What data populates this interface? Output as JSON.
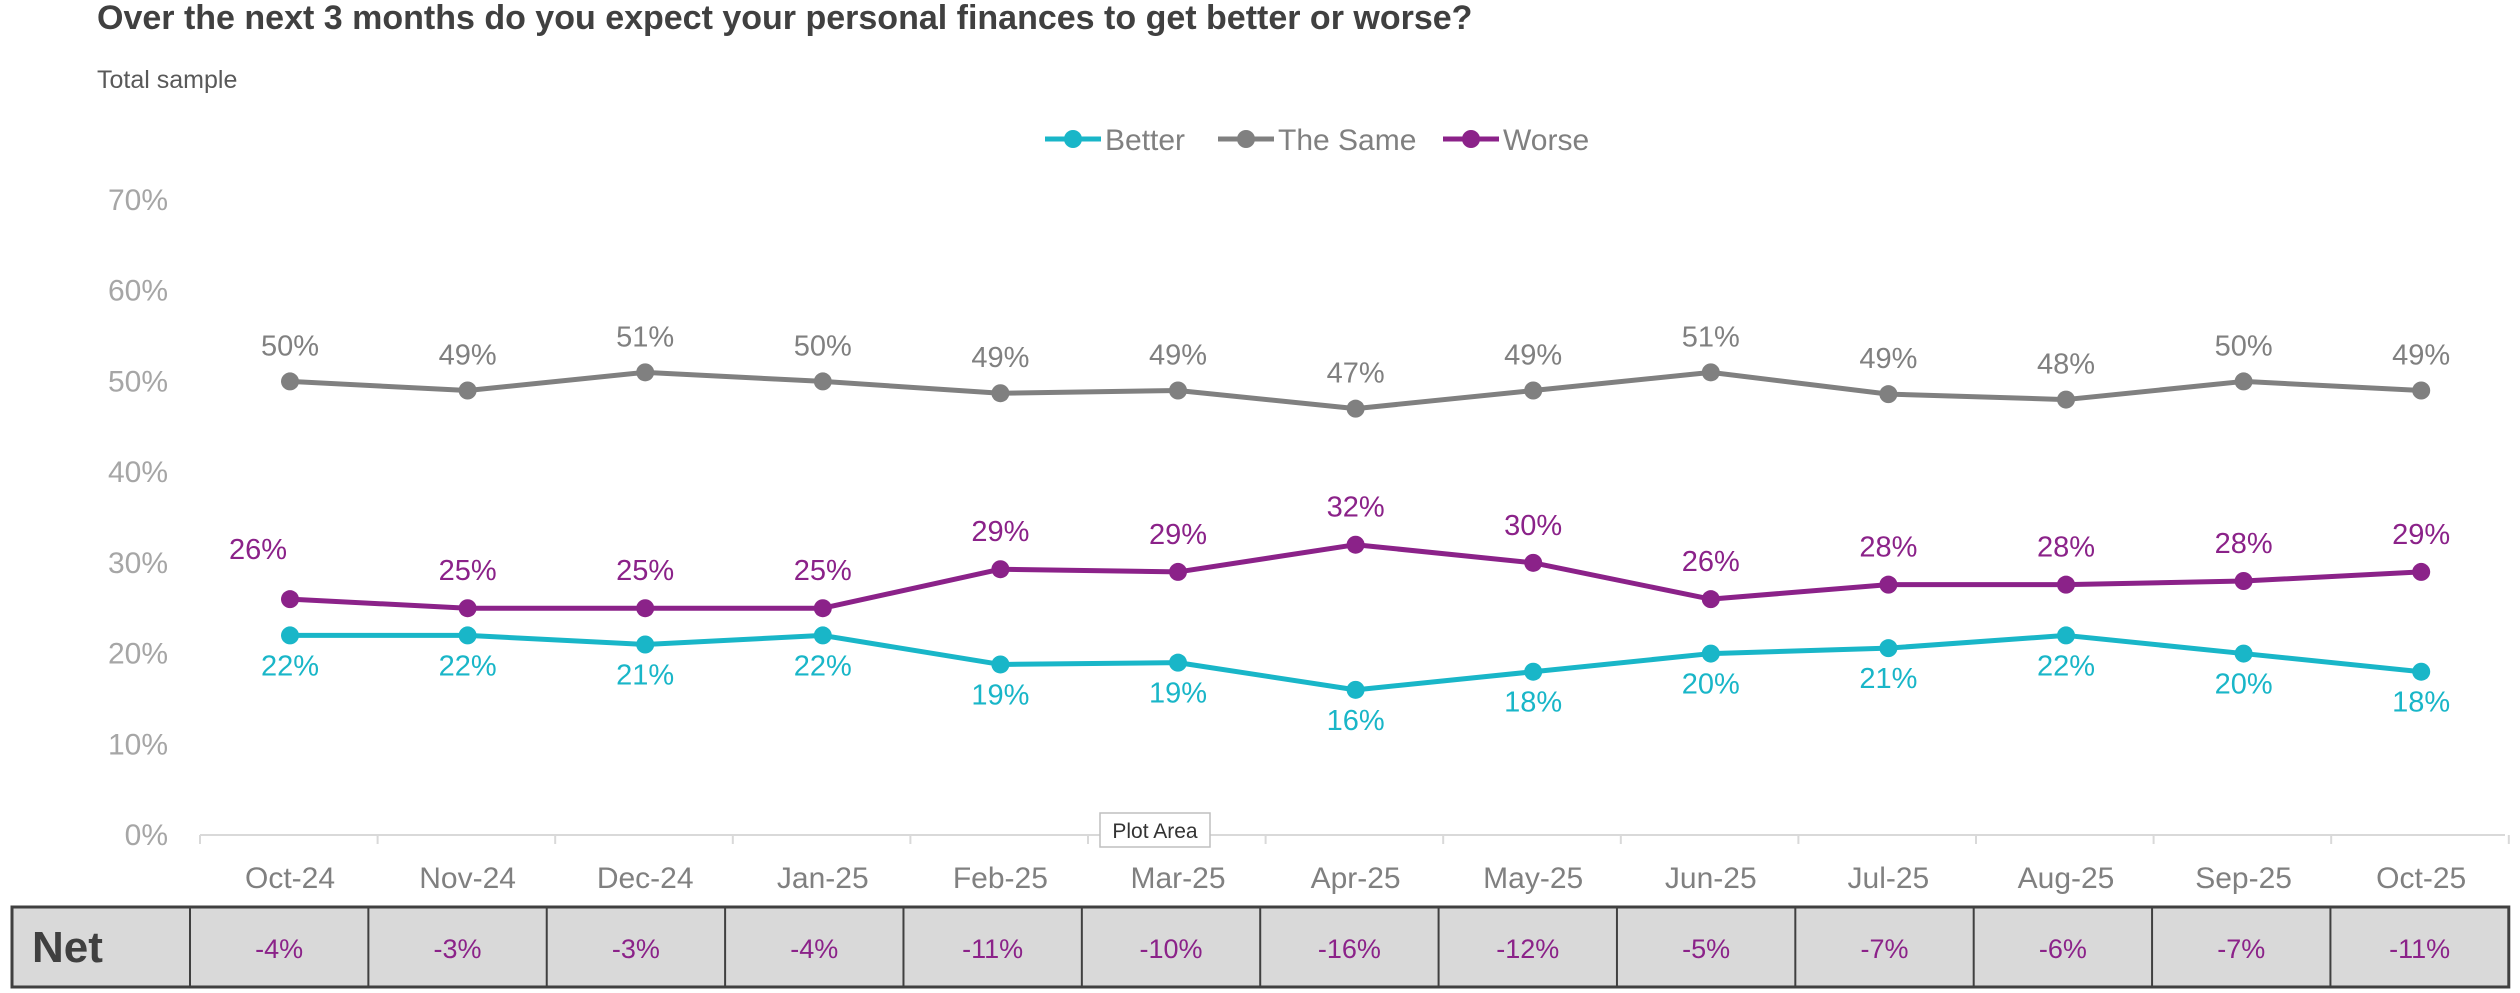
{
  "chart_data": {
    "type": "line",
    "title": "Over the next 3 months do you expect your personal finances to get better or worse?",
    "subtitle": "Total sample",
    "categories": [
      "Oct-24",
      "Nov-24",
      "Dec-24",
      "Jan-25",
      "Feb-25",
      "Mar-25",
      "Apr-25",
      "May-25",
      "Jun-25",
      "Jul-25",
      "Aug-25",
      "Sep-25",
      "Oct-25"
    ],
    "series": [
      {
        "name": "Better",
        "color": "#19b6c8",
        "values": [
          22,
          22,
          21,
          22,
          18.8,
          19,
          16,
          18,
          20,
          20.6,
          22,
          20,
          18
        ],
        "labels": [
          "22%",
          "22%",
          "21%",
          "22%",
          "19%",
          "19%",
          "16%",
          "18%",
          "20%",
          "21%",
          "22%",
          "20%",
          "18%"
        ]
      },
      {
        "name": "The Same",
        "color": "#808080",
        "values": [
          50,
          49,
          51,
          50,
          48.7,
          49,
          47,
          49,
          51,
          48.6,
          48,
          50,
          49
        ],
        "labels": [
          "50%",
          "49%",
          "51%",
          "50%",
          "49%",
          "49%",
          "47%",
          "49%",
          "51%",
          "49%",
          "48%",
          "50%",
          "49%"
        ]
      },
      {
        "name": "Worse",
        "color": "#8b2289",
        "values": [
          26,
          25,
          25,
          25,
          29.3,
          29,
          32,
          30,
          26,
          27.6,
          27.6,
          28,
          29
        ],
        "labels": [
          "26%",
          "25%",
          "25%",
          "25%",
          "29%",
          "29%",
          "32%",
          "30%",
          "26%",
          "28%",
          "28%",
          "28%",
          "29%"
        ]
      }
    ],
    "yticks": [
      "0%",
      "10%",
      "20%",
      "30%",
      "40%",
      "50%",
      "60%",
      "70%"
    ],
    "ylim": [
      0,
      70
    ],
    "legend_position": "top-center",
    "net": {
      "label": "Net",
      "values": [
        "-4%",
        "-3%",
        "-3%",
        "-4%",
        "-11%",
        "-10%",
        "-16%",
        "-12%",
        "-5%",
        "-7%",
        "-6%",
        "-7%",
        "-11%"
      ]
    },
    "tooltip": "Plot Area"
  }
}
